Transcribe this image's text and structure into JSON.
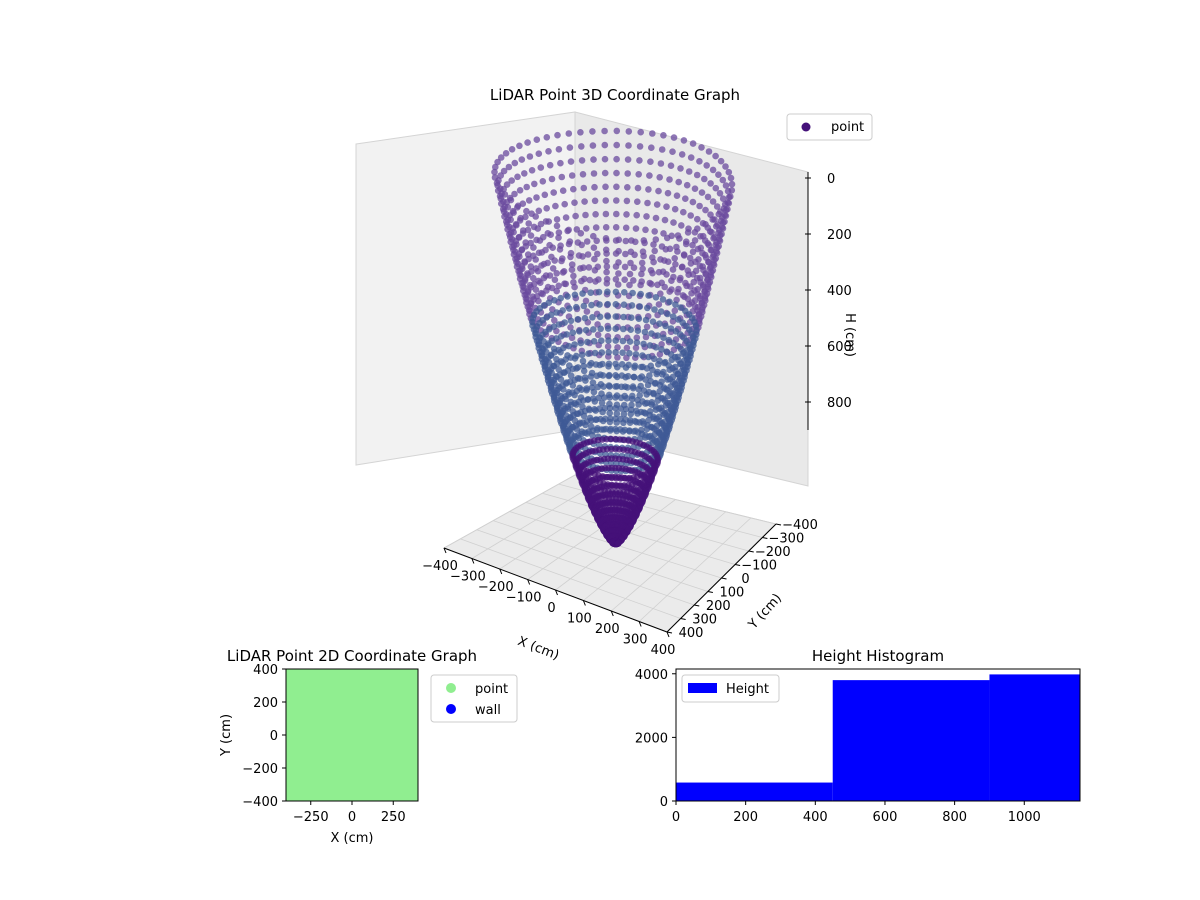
{
  "chart_data": [
    {
      "type": "scatter",
      "title": "LiDAR Point 3D Coordinate Graph",
      "xlabel": "X (cm)",
      "ylabel": "Y (cm)",
      "zlabel": "H (cm)",
      "xlim": [
        -400,
        400
      ],
      "ylim": [
        -400,
        400
      ],
      "zlim": [
        0,
        1000
      ],
      "z_inverted": true,
      "x_ticks": [
        "−400",
        "−300",
        "−200",
        "−100",
        "0",
        "100",
        "200",
        "300",
        "400"
      ],
      "y_ticks": [
        "−400",
        "−300",
        "−200",
        "−100",
        "0",
        "100",
        "200",
        "300",
        "400"
      ],
      "z_ticks": [
        "0",
        "200",
        "400",
        "600",
        "800"
      ],
      "grid": true,
      "legend": [
        "point"
      ],
      "legend_position": "top-right",
      "series": [
        {
          "name": "point",
          "color": "#45127a",
          "description_shape": "radial rays forming a bowl",
          "rays": 120,
          "radius_max": 390,
          "height_max": 1000
        }
      ]
    },
    {
      "type": "scatter",
      "title": "LiDAR Point 2D Coordinate Graph",
      "xlabel": "X (cm)",
      "ylabel": "Y (cm)",
      "xlim": [
        -400,
        400
      ],
      "ylim": [
        -400,
        400
      ],
      "x_ticks": [
        "−250",
        "0",
        "250"
      ],
      "y_ticks": [
        "400",
        "200",
        "0",
        "−200",
        "−400"
      ],
      "legend": [
        "point",
        "wall"
      ],
      "legend_position": "outside-right",
      "series": [
        {
          "name": "point",
          "color": "#90ee90"
        },
        {
          "name": "wall",
          "color": "#0000ff"
        }
      ]
    },
    {
      "type": "bar",
      "title": "Height Histogram",
      "xlim": [
        0,
        1160
      ],
      "ylim": [
        0,
        4150
      ],
      "x_ticks": [
        "0",
        "200",
        "400",
        "600",
        "800",
        "1000"
      ],
      "y_ticks": [
        "0",
        "2000",
        "4000"
      ],
      "legend": [
        "Height"
      ],
      "legend_position": "top-left",
      "bins": [
        {
          "x0": 0,
          "x1": 450,
          "value": 580
        },
        {
          "x0": 450,
          "x1": 900,
          "value": 3800
        },
        {
          "x0": 900,
          "x1": 1160,
          "value": 3980
        }
      ],
      "series": [
        {
          "name": "Height",
          "color": "#0000ff"
        }
      ]
    }
  ]
}
